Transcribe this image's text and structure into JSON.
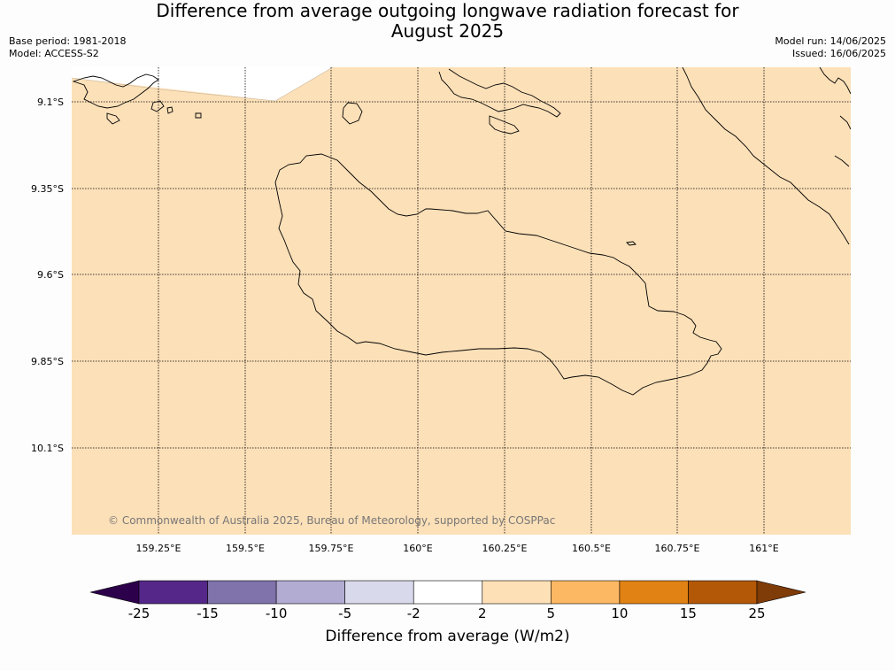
{
  "title": {
    "line1": "Difference from average outgoing longwave radiation forecast for",
    "line2": "August 2025"
  },
  "meta": {
    "base_period": "Base period: 1981-2018",
    "model": "Model: ACCESS-S2",
    "model_run": "Model run: 14/06/2025",
    "issued": "Issued: 16/06/2025"
  },
  "map": {
    "fill_color": "#fce0b8",
    "outside_color": "#ffffff",
    "lat_labels": [
      "9.1°S",
      "9.35°S",
      "9.6°S",
      "9.85°S",
      "10.1°S"
    ],
    "lon_labels": [
      "159.25°E",
      "159.5°E",
      "159.75°E",
      "160°E",
      "160.25°E",
      "160.5°E",
      "160.75°E",
      "161°E"
    ],
    "copyright": "© Commonwealth of Australia 2025, Bureau of Meteorology, supported by COSPPac"
  },
  "colorbar": {
    "label": "Difference from average (W/m2)",
    "ticks": [
      "-25",
      "-15",
      "-10",
      "-5",
      "-2",
      "2",
      "5",
      "10",
      "15",
      "25"
    ],
    "colors": [
      "#2d004b",
      "#542788",
      "#8073ac",
      "#b2abd2",
      "#d8daeb",
      "#ffffff",
      "#fee0b6",
      "#fdb863",
      "#e08214",
      "#b35806",
      "#7f3b08"
    ]
  }
}
